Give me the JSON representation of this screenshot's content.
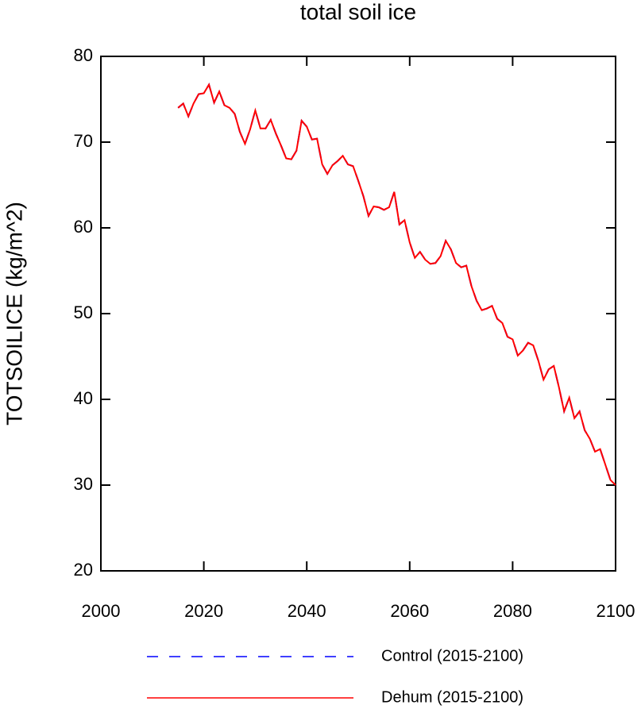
{
  "chart_data": {
    "type": "line",
    "title": "total soil ice",
    "y_label": "TOTSOILICE  (kg/m^2)",
    "x": [
      2015,
      2016,
      2017,
      2018,
      2019,
      2020,
      2021,
      2022,
      2023,
      2024,
      2025,
      2026,
      2027,
      2028,
      2029,
      2030,
      2031,
      2032,
      2033,
      2034,
      2035,
      2036,
      2037,
      2038,
      2039,
      2040,
      2041,
      2042,
      2043,
      2044,
      2045,
      2046,
      2047,
      2048,
      2049,
      2050,
      2051,
      2052,
      2053,
      2054,
      2055,
      2056,
      2057,
      2058,
      2059,
      2060,
      2061,
      2062,
      2063,
      2064,
      2065,
      2066,
      2067,
      2068,
      2069,
      2070,
      2071,
      2072,
      2073,
      2074,
      2075,
      2076,
      2077,
      2078,
      2079,
      2080,
      2081,
      2082,
      2083,
      2084,
      2085,
      2086,
      2087,
      2088,
      2089,
      2090,
      2091,
      2092,
      2093,
      2094,
      2095,
      2096,
      2097,
      2098,
      2099,
      2100
    ],
    "series": [
      {
        "name": "Control (2015-2100)",
        "color": "#0000ff",
        "line_style": "dashed",
        "values": [
          74.0,
          74.5,
          73.0,
          74.5,
          75.6,
          75.7,
          76.7,
          74.6,
          75.9,
          74.3,
          74.0,
          73.3,
          71.2,
          69.8,
          71.5,
          73.7,
          71.6,
          71.6,
          72.6,
          71.0,
          69.6,
          68.1,
          68.0,
          69.0,
          72.5,
          71.8,
          70.3,
          70.4,
          67.4,
          66.3,
          67.3,
          67.8,
          68.4,
          67.4,
          67.2,
          65.5,
          63.7,
          61.4,
          62.5,
          62.4,
          62.1,
          62.4,
          64.2,
          60.4,
          60.9,
          58.3,
          56.5,
          57.2,
          56.3,
          55.8,
          55.9,
          56.7,
          58.5,
          57.5,
          55.9,
          55.4,
          55.6,
          53.2,
          51.5,
          50.4,
          50.6,
          50.9,
          49.4,
          48.9,
          47.3,
          47.0,
          45.1,
          45.7,
          46.6,
          46.3,
          44.5,
          42.3,
          43.5,
          43.9,
          41.4,
          38.6,
          40.2,
          37.8,
          38.6,
          36.4,
          35.4,
          33.9,
          34.2,
          32.4,
          30.6,
          30.0
        ]
      },
      {
        "name": "Dehum (2015-2100)",
        "color": "#ff0000",
        "line_style": "solid",
        "values": [
          74.0,
          74.5,
          73.0,
          74.5,
          75.6,
          75.7,
          76.7,
          74.6,
          75.9,
          74.3,
          74.0,
          73.3,
          71.2,
          69.8,
          71.5,
          73.7,
          71.6,
          71.6,
          72.6,
          71.0,
          69.6,
          68.1,
          68.0,
          69.0,
          72.5,
          71.8,
          70.3,
          70.4,
          67.4,
          66.3,
          67.3,
          67.8,
          68.4,
          67.4,
          67.2,
          65.5,
          63.7,
          61.4,
          62.5,
          62.4,
          62.1,
          62.4,
          64.2,
          60.4,
          60.9,
          58.3,
          56.5,
          57.2,
          56.3,
          55.8,
          55.9,
          56.7,
          58.5,
          57.5,
          55.9,
          55.4,
          55.6,
          53.2,
          51.5,
          50.4,
          50.6,
          50.9,
          49.4,
          48.9,
          47.3,
          47.0,
          45.1,
          45.7,
          46.6,
          46.3,
          44.5,
          42.3,
          43.5,
          43.9,
          41.4,
          38.6,
          40.2,
          37.8,
          38.6,
          36.4,
          35.4,
          33.9,
          34.2,
          32.4,
          30.6,
          30.0
        ]
      }
    ],
    "xlim": [
      2000,
      2100
    ],
    "xticks": [
      2000,
      2020,
      2040,
      2060,
      2080,
      2100
    ],
    "ylim": [
      20,
      80
    ],
    "yticks": [
      20,
      30,
      40,
      50,
      60,
      70,
      80
    ]
  }
}
